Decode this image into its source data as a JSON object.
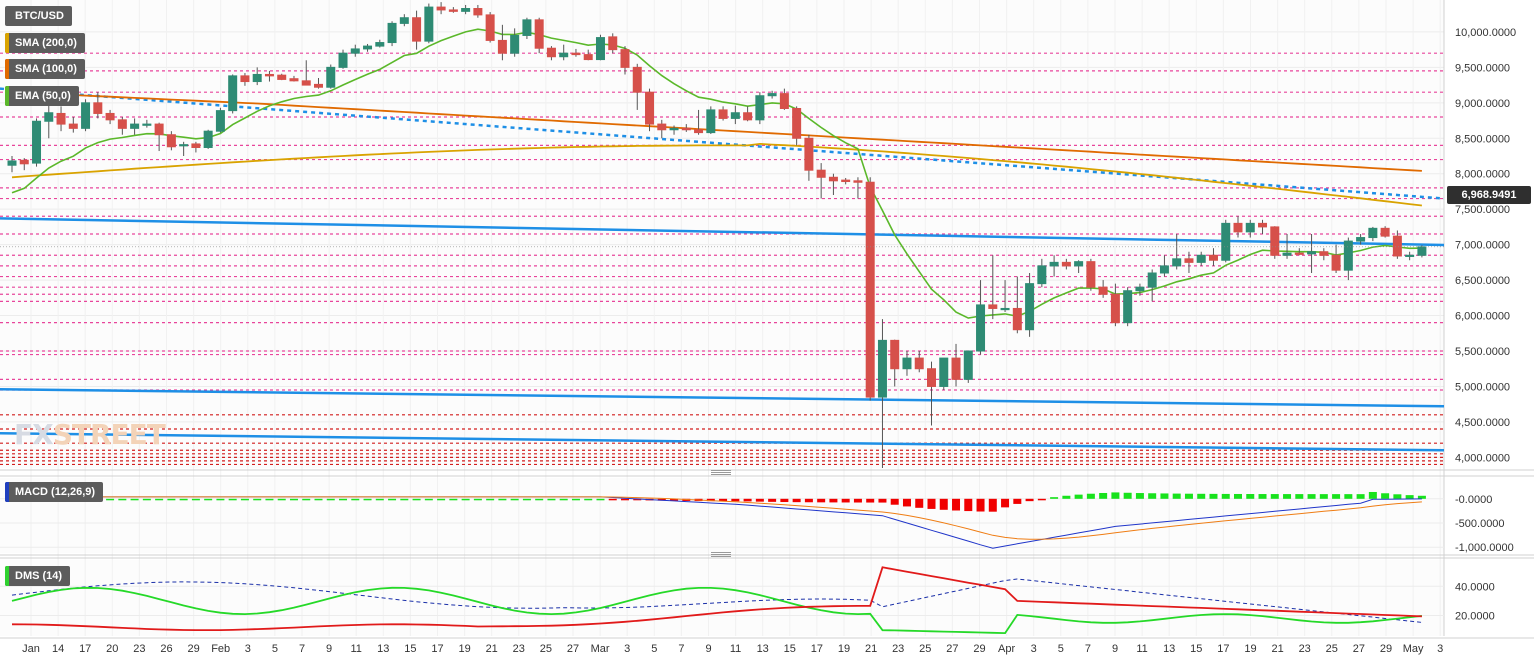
{
  "chart_data": {
    "type": "candlestick",
    "symbol": "BTC/USD",
    "last_price": "6,968.9491",
    "indicators": {
      "sma200": {
        "label": "SMA (200,0)",
        "color": "#d9a300"
      },
      "sma100": {
        "label": "SMA (100,0)",
        "color": "#e06a00"
      },
      "ema50": {
        "label": "EMA (50,0)",
        "color": "#5bb82a"
      }
    },
    "price_axis": {
      "ylim": [
        3850,
        10450
      ],
      "ticks": [
        {
          "v": 4000,
          "label": "4,000.0000"
        },
        {
          "v": 4500,
          "label": "4,500.0000"
        },
        {
          "v": 5000,
          "label": "5,000.0000"
        },
        {
          "v": 5500,
          "label": "5,500.0000"
        },
        {
          "v": 6000,
          "label": "6,000.0000"
        },
        {
          "v": 6500,
          "label": "6,500.0000"
        },
        {
          "v": 7000,
          "label": "7,000.0000"
        },
        {
          "v": 7500,
          "label": "7,500.0000"
        },
        {
          "v": 8000,
          "label": "8,000.0000"
        },
        {
          "v": 8500,
          "label": "8,500.0000"
        },
        {
          "v": 9000,
          "label": "9,000.0000"
        },
        {
          "v": 9500,
          "label": "9,500.0000"
        },
        {
          "v": 10000,
          "label": "10,000.0000"
        }
      ]
    },
    "x_axis": {
      "labels": [
        "Jan",
        "14",
        "17",
        "20",
        "23",
        "26",
        "29",
        "Feb",
        "3",
        "5",
        "7",
        "9",
        "11",
        "13",
        "15",
        "17",
        "19",
        "21",
        "23",
        "25",
        "27",
        "Mar",
        "3",
        "5",
        "7",
        "9",
        "11",
        "13",
        "15",
        "17",
        "19",
        "21",
        "23",
        "25",
        "27",
        "29",
        "Apr",
        "3",
        "5",
        "7",
        "9",
        "11",
        "13",
        "15",
        "17",
        "19",
        "21",
        "23",
        "25",
        "27",
        "29",
        "May",
        "3"
      ]
    },
    "pink_levels": [
      9700,
      9450,
      9150,
      8800,
      8400,
      8200,
      7800,
      7650,
      7400,
      7150,
      6850,
      6700,
      6550,
      6400,
      6300,
      6200,
      5900,
      5500,
      5450,
      5100,
      4950
    ],
    "red_levels": [
      4600,
      4400,
      4200,
      4100,
      4050,
      4000,
      3950,
      3900
    ],
    "candles": [
      {
        "o": 8120,
        "h": 8250,
        "l": 8020,
        "c": 8180
      },
      {
        "o": 8190,
        "h": 8220,
        "l": 8050,
        "c": 8140
      },
      {
        "o": 8150,
        "h": 8780,
        "l": 8100,
        "c": 8740
      },
      {
        "o": 8740,
        "h": 9000,
        "l": 8500,
        "c": 8860
      },
      {
        "o": 8850,
        "h": 8950,
        "l": 8600,
        "c": 8700
      },
      {
        "o": 8700,
        "h": 8800,
        "l": 8580,
        "c": 8640
      },
      {
        "o": 8640,
        "h": 9050,
        "l": 8600,
        "c": 9000
      },
      {
        "o": 9000,
        "h": 9150,
        "l": 8780,
        "c": 8850
      },
      {
        "o": 8850,
        "h": 8900,
        "l": 8700,
        "c": 8760
      },
      {
        "o": 8760,
        "h": 8800,
        "l": 8550,
        "c": 8640
      },
      {
        "o": 8640,
        "h": 8780,
        "l": 8550,
        "c": 8700
      },
      {
        "o": 8700,
        "h": 8760,
        "l": 8650,
        "c": 8700
      },
      {
        "o": 8700,
        "h": 8720,
        "l": 8320,
        "c": 8550
      },
      {
        "o": 8550,
        "h": 8600,
        "l": 8330,
        "c": 8380
      },
      {
        "o": 8400,
        "h": 8450,
        "l": 8250,
        "c": 8410
      },
      {
        "o": 8420,
        "h": 8450,
        "l": 8300,
        "c": 8370
      },
      {
        "o": 8370,
        "h": 8620,
        "l": 8350,
        "c": 8600
      },
      {
        "o": 8600,
        "h": 8930,
        "l": 8580,
        "c": 8890
      },
      {
        "o": 8890,
        "h": 9400,
        "l": 8850,
        "c": 9380
      },
      {
        "o": 9380,
        "h": 9420,
        "l": 9240,
        "c": 9300
      },
      {
        "o": 9300,
        "h": 9500,
        "l": 9250,
        "c": 9400
      },
      {
        "o": 9400,
        "h": 9450,
        "l": 9300,
        "c": 9380
      },
      {
        "o": 9390,
        "h": 9410,
        "l": 9320,
        "c": 9330
      },
      {
        "o": 9340,
        "h": 9380,
        "l": 9300,
        "c": 9310
      },
      {
        "o": 9310,
        "h": 9600,
        "l": 9250,
        "c": 9250
      },
      {
        "o": 9260,
        "h": 9350,
        "l": 9200,
        "c": 9220
      },
      {
        "o": 9220,
        "h": 9540,
        "l": 9200,
        "c": 9500
      },
      {
        "o": 9500,
        "h": 9750,
        "l": 9480,
        "c": 9700
      },
      {
        "o": 9700,
        "h": 9820,
        "l": 9650,
        "c": 9760
      },
      {
        "o": 9760,
        "h": 9830,
        "l": 9720,
        "c": 9800
      },
      {
        "o": 9800,
        "h": 9890,
        "l": 9780,
        "c": 9850
      },
      {
        "o": 9850,
        "h": 10150,
        "l": 9800,
        "c": 10120
      },
      {
        "o": 10120,
        "h": 10250,
        "l": 10080,
        "c": 10200
      },
      {
        "o": 10200,
        "h": 10300,
        "l": 9750,
        "c": 9870
      },
      {
        "o": 9870,
        "h": 10400,
        "l": 9840,
        "c": 10350
      },
      {
        "o": 10350,
        "h": 10420,
        "l": 10250,
        "c": 10310
      },
      {
        "o": 10310,
        "h": 10350,
        "l": 10270,
        "c": 10290
      },
      {
        "o": 10290,
        "h": 10380,
        "l": 10250,
        "c": 10330
      },
      {
        "o": 10330,
        "h": 10380,
        "l": 10200,
        "c": 10240
      },
      {
        "o": 10240,
        "h": 10280,
        "l": 9850,
        "c": 9880
      },
      {
        "o": 9880,
        "h": 10100,
        "l": 9600,
        "c": 9700
      },
      {
        "o": 9700,
        "h": 10050,
        "l": 9650,
        "c": 9950
      },
      {
        "o": 9950,
        "h": 10200,
        "l": 9900,
        "c": 10170
      },
      {
        "o": 10170,
        "h": 10200,
        "l": 9700,
        "c": 9770
      },
      {
        "o": 9770,
        "h": 9800,
        "l": 9600,
        "c": 9650
      },
      {
        "o": 9650,
        "h": 9820,
        "l": 9600,
        "c": 9700
      },
      {
        "o": 9700,
        "h": 9760,
        "l": 9650,
        "c": 9680
      },
      {
        "o": 9680,
        "h": 9750,
        "l": 9600,
        "c": 9610
      },
      {
        "o": 9610,
        "h": 9960,
        "l": 9600,
        "c": 9920
      },
      {
        "o": 9930,
        "h": 9980,
        "l": 9700,
        "c": 9750
      },
      {
        "o": 9750,
        "h": 9800,
        "l": 9400,
        "c": 9500
      },
      {
        "o": 9500,
        "h": 9550,
        "l": 8900,
        "c": 9150
      },
      {
        "o": 9150,
        "h": 9200,
        "l": 8600,
        "c": 8700
      },
      {
        "o": 8700,
        "h": 8760,
        "l": 8500,
        "c": 8620
      },
      {
        "o": 8620,
        "h": 8680,
        "l": 8550,
        "c": 8640
      },
      {
        "o": 8640,
        "h": 8700,
        "l": 8590,
        "c": 8620
      },
      {
        "o": 8620,
        "h": 8900,
        "l": 8550,
        "c": 8580
      },
      {
        "o": 8580,
        "h": 8950,
        "l": 8560,
        "c": 8900
      },
      {
        "o": 8900,
        "h": 8950,
        "l": 8750,
        "c": 8780
      },
      {
        "o": 8780,
        "h": 8960,
        "l": 8700,
        "c": 8860
      },
      {
        "o": 8860,
        "h": 8950,
        "l": 8740,
        "c": 8760
      },
      {
        "o": 8760,
        "h": 9150,
        "l": 8700,
        "c": 9100
      },
      {
        "o": 9100,
        "h": 9170,
        "l": 9060,
        "c": 9130
      },
      {
        "o": 9130,
        "h": 9200,
        "l": 8900,
        "c": 8920
      },
      {
        "o": 8920,
        "h": 8950,
        "l": 8400,
        "c": 8500
      },
      {
        "o": 8500,
        "h": 8550,
        "l": 7900,
        "c": 8050
      },
      {
        "o": 8050,
        "h": 8150,
        "l": 7650,
        "c": 7950
      },
      {
        "o": 7950,
        "h": 8000,
        "l": 7700,
        "c": 7900
      },
      {
        "o": 7910,
        "h": 7940,
        "l": 7850,
        "c": 7890
      },
      {
        "o": 7900,
        "h": 7950,
        "l": 7650,
        "c": 7880
      },
      {
        "o": 7880,
        "h": 7950,
        "l": 4800,
        "c": 4850
      },
      {
        "o": 4850,
        "h": 5950,
        "l": 3850,
        "c": 5650
      },
      {
        "o": 5650,
        "h": 5660,
        "l": 5000,
        "c": 5250
      },
      {
        "o": 5250,
        "h": 5500,
        "l": 5150,
        "c": 5400
      },
      {
        "o": 5400,
        "h": 5500,
        "l": 5200,
        "c": 5250
      },
      {
        "o": 5250,
        "h": 5350,
        "l": 4450,
        "c": 5000
      },
      {
        "o": 5000,
        "h": 5400,
        "l": 4950,
        "c": 5400
      },
      {
        "o": 5400,
        "h": 5600,
        "l": 5000,
        "c": 5100
      },
      {
        "o": 5100,
        "h": 5500,
        "l": 5050,
        "c": 5500
      },
      {
        "o": 5500,
        "h": 6500,
        "l": 5450,
        "c": 6150
      },
      {
        "o": 6150,
        "h": 6850,
        "l": 5950,
        "c": 6100
      },
      {
        "o": 6100,
        "h": 6500,
        "l": 6050,
        "c": 6100
      },
      {
        "o": 6100,
        "h": 6550,
        "l": 5750,
        "c": 5800
      },
      {
        "o": 5800,
        "h": 6600,
        "l": 5700,
        "c": 6450
      },
      {
        "o": 6450,
        "h": 6800,
        "l": 6400,
        "c": 6700
      },
      {
        "o": 6700,
        "h": 6850,
        "l": 6550,
        "c": 6750
      },
      {
        "o": 6750,
        "h": 6800,
        "l": 6650,
        "c": 6700
      },
      {
        "o": 6700,
        "h": 6780,
        "l": 6600,
        "c": 6760
      },
      {
        "o": 6760,
        "h": 6800,
        "l": 6350,
        "c": 6400
      },
      {
        "o": 6400,
        "h": 6500,
        "l": 6250,
        "c": 6300
      },
      {
        "o": 6300,
        "h": 6450,
        "l": 5850,
        "c": 5900
      },
      {
        "o": 5900,
        "h": 6400,
        "l": 5850,
        "c": 6350
      },
      {
        "o": 6350,
        "h": 6450,
        "l": 6280,
        "c": 6400
      },
      {
        "o": 6400,
        "h": 6650,
        "l": 6200,
        "c": 6600
      },
      {
        "o": 6600,
        "h": 6850,
        "l": 6550,
        "c": 6700
      },
      {
        "o": 6700,
        "h": 7150,
        "l": 6650,
        "c": 6800
      },
      {
        "o": 6800,
        "h": 6900,
        "l": 6600,
        "c": 6750
      },
      {
        "o": 6750,
        "h": 6900,
        "l": 6700,
        "c": 6850
      },
      {
        "o": 6850,
        "h": 6950,
        "l": 6700,
        "c": 6780
      },
      {
        "o": 6780,
        "h": 7350,
        "l": 6750,
        "c": 7300
      },
      {
        "o": 7300,
        "h": 7400,
        "l": 7100,
        "c": 7180
      },
      {
        "o": 7180,
        "h": 7350,
        "l": 7100,
        "c": 7300
      },
      {
        "o": 7300,
        "h": 7350,
        "l": 7150,
        "c": 7250
      },
      {
        "o": 7250,
        "h": 7260,
        "l": 6800,
        "c": 6850
      },
      {
        "o": 6850,
        "h": 7150,
        "l": 6800,
        "c": 6880
      },
      {
        "o": 6880,
        "h": 6950,
        "l": 6850,
        "c": 6870
      },
      {
        "o": 6870,
        "h": 7150,
        "l": 6600,
        "c": 6900
      },
      {
        "o": 6900,
        "h": 6950,
        "l": 6780,
        "c": 6850
      },
      {
        "o": 6850,
        "h": 7000,
        "l": 6600,
        "c": 6640
      },
      {
        "o": 6640,
        "h": 7100,
        "l": 6500,
        "c": 7050
      },
      {
        "o": 7050,
        "h": 7150,
        "l": 7000,
        "c": 7100
      },
      {
        "o": 7100,
        "h": 7250,
        "l": 7050,
        "c": 7230
      },
      {
        "o": 7230,
        "h": 7260,
        "l": 7100,
        "c": 7120
      },
      {
        "o": 7120,
        "h": 7200,
        "l": 6800,
        "c": 6840
      },
      {
        "o": 6840,
        "h": 6900,
        "l": 6780,
        "c": 6850
      },
      {
        "o": 6850,
        "h": 6990,
        "l": 6820,
        "c": 6969
      }
    ],
    "macd": {
      "label": "MACD (12,26,9)",
      "ticks": [
        {
          "v": 0,
          "label": "-0.0000"
        },
        {
          "v": -500,
          "label": "-500.0000"
        },
        {
          "v": -1000,
          "label": "-1,000.0000"
        }
      ],
      "ylim": [
        -1120,
        430
      ]
    },
    "dms": {
      "label": "DMS (14)",
      "ticks": [
        {
          "v": 40,
          "label": "40.0000"
        },
        {
          "v": 20,
          "label": "20.0000"
        }
      ],
      "ylim": [
        6,
        58
      ]
    }
  },
  "watermark": {
    "part1": "FX",
    "part2": "STREET"
  }
}
